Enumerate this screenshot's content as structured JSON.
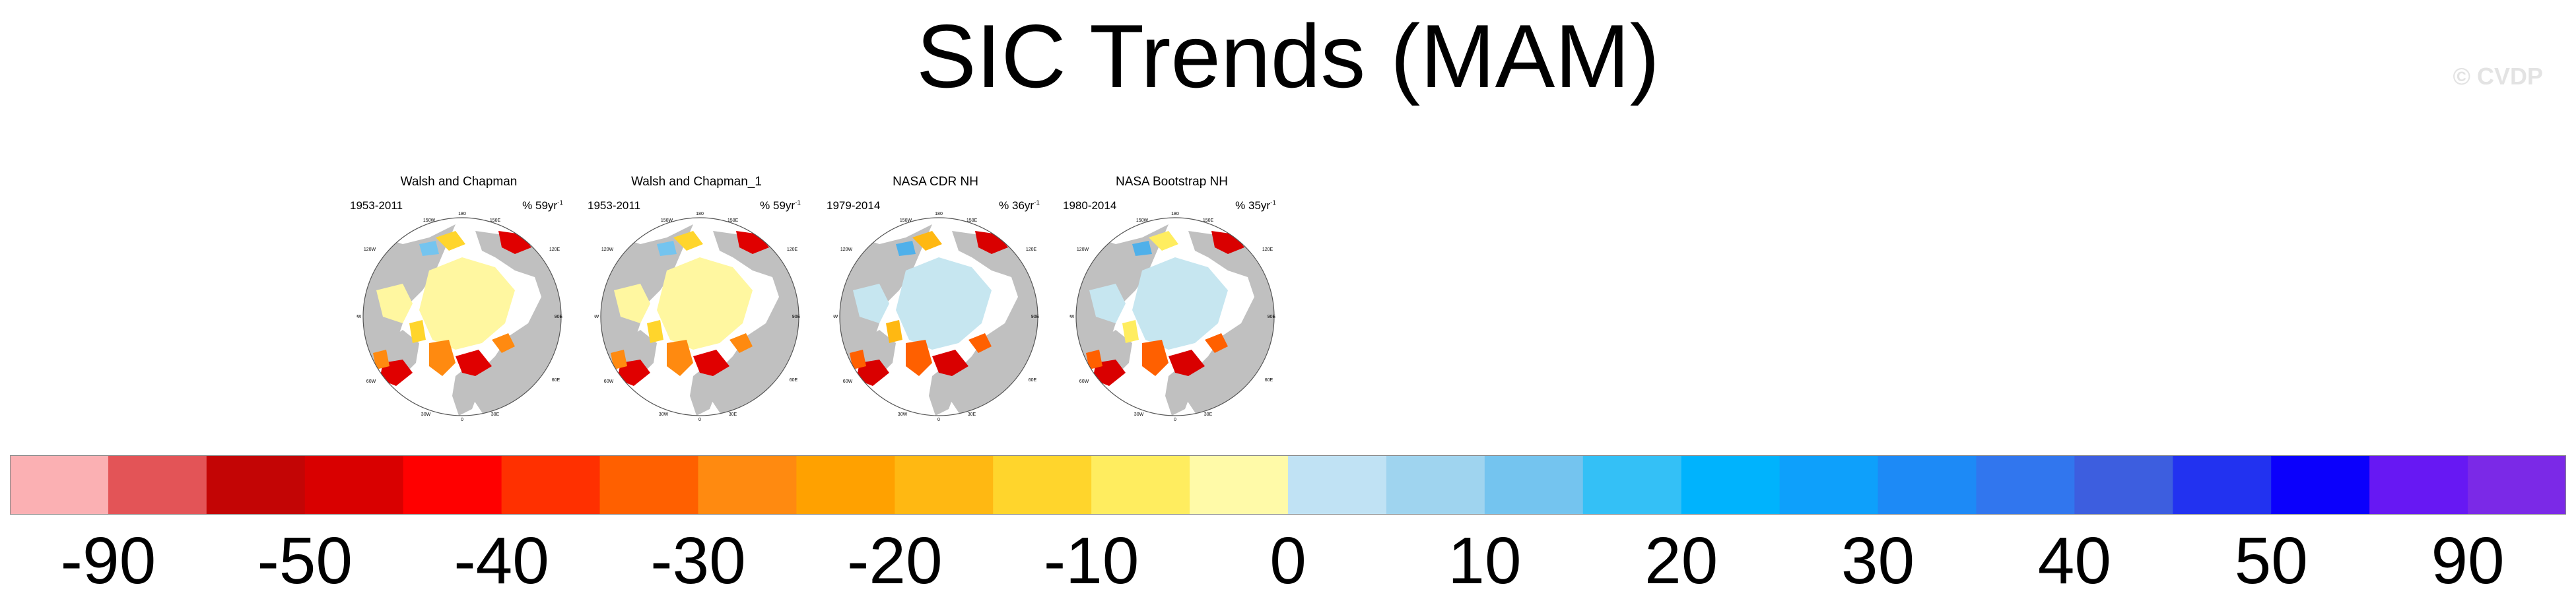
{
  "title": "SIC Trends (MAM)",
  "watermark": "© CVDP",
  "panels": [
    {
      "title": "Walsh and Chapman",
      "period": "1953-2011",
      "rate": "% 59yr",
      "rate_sup": "-1",
      "scheme": "walsh"
    },
    {
      "title": "Walsh and Chapman_1",
      "period": "1953-2011",
      "rate": "% 59yr",
      "rate_sup": "-1",
      "scheme": "walsh"
    },
    {
      "title": "NASA CDR NH",
      "period": "1979-2014",
      "rate": "% 36yr",
      "rate_sup": "-1",
      "scheme": "cdr"
    },
    {
      "title": "NASA Bootstrap NH",
      "period": "1980-2014",
      "rate": "% 35yr",
      "rate_sup": "-1",
      "scheme": "boot"
    }
  ],
  "map_labels": {
    "lon": [
      "180",
      "150W",
      "150E",
      "120W",
      "120E",
      "90W",
      "90E",
      "60W",
      "60E",
      "30W",
      "30E",
      "0"
    ]
  },
  "colors": {
    "land": "#c0c0c0",
    "ocean": "#ffffff"
  },
  "colorbar": {
    "colors": [
      "#fbb0b3",
      "#e35457",
      "#c30505",
      "#d90000",
      "#ff0000",
      "#ff3000",
      "#ff6000",
      "#ff8a10",
      "#ffa100",
      "#ffb812",
      "#ffd52c",
      "#ffed5f",
      "#fffaa8",
      "#c0e2f4",
      "#9fd4ef",
      "#74c4ef",
      "#34c0f6",
      "#00b3fd",
      "#0ea0fb",
      "#1d8af6",
      "#3176ee",
      "#3d5edf",
      "#2232f0",
      "#0b00fc",
      "#6718f3",
      "#7b29e7"
    ],
    "labels": [
      {
        "text": "-90",
        "edge": 1
      },
      {
        "text": "-50",
        "edge": 3
      },
      {
        "text": "-40",
        "edge": 5
      },
      {
        "text": "-30",
        "edge": 7
      },
      {
        "text": "-20",
        "edge": 9
      },
      {
        "text": "-10",
        "edge": 11
      },
      {
        "text": "0",
        "edge": 13
      },
      {
        "text": "10",
        "edge": 15
      },
      {
        "text": "20",
        "edge": 17
      },
      {
        "text": "30",
        "edge": 19
      },
      {
        "text": "40",
        "edge": 21
      },
      {
        "text": "50",
        "edge": 23
      },
      {
        "text": "90",
        "edge": 25
      }
    ]
  }
}
